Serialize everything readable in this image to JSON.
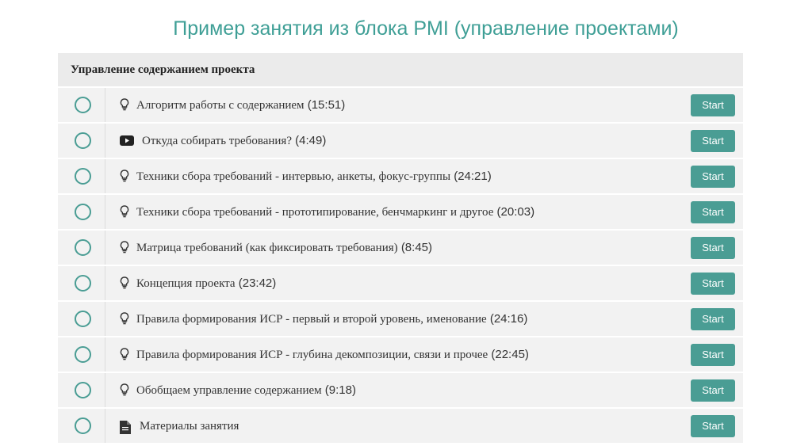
{
  "title": "Пример занятия из блока PMI (управление проектами)",
  "section": {
    "title": "Управление содержанием проекта",
    "button_label": "Start",
    "lessons": [
      {
        "icon": "bulb",
        "title": "Алгоритм работы с содержанием",
        "duration": "(15:51)"
      },
      {
        "icon": "video",
        "title": "Откуда собирать требования?",
        "duration": "(4:49)"
      },
      {
        "icon": "bulb",
        "title": "Техники сбора требований - интервью, анкеты, фокус-группы",
        "duration": "(24:21)"
      },
      {
        "icon": "bulb",
        "title": "Техники сбора требований - прототипирование, бенчмаркинг и другое",
        "duration": "(20:03)"
      },
      {
        "icon": "bulb",
        "title": "Матрица требований (как фиксировать требования)",
        "duration": "(8:45)"
      },
      {
        "icon": "bulb",
        "title": "Концепция проекта",
        "duration": "(23:42)"
      },
      {
        "icon": "bulb",
        "title": "Правила формирования ИСР - первый и второй уровень, именование",
        "duration": "(24:16)"
      },
      {
        "icon": "bulb",
        "title": "Правила формирования ИСР - глубина декомпозиции, связи и прочее",
        "duration": "(22:45)"
      },
      {
        "icon": "bulb",
        "title": "Обобщаем управление содержанием",
        "duration": "(9:18)"
      },
      {
        "icon": "file",
        "title": "Материалы занятия",
        "duration": null
      }
    ]
  }
}
